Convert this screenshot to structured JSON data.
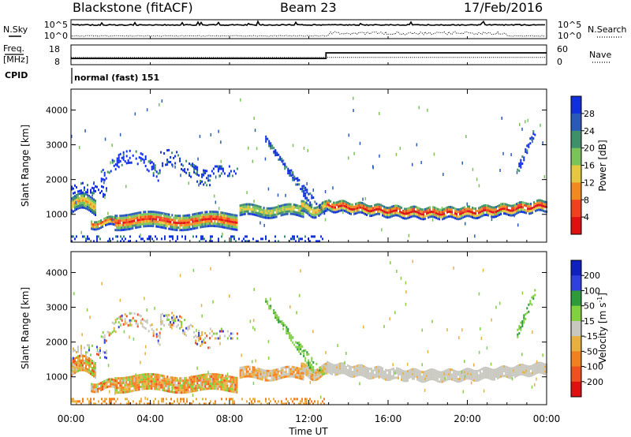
{
  "header": {
    "station": "Blackstone (fitACF)",
    "beam": "Beam 23",
    "date": "17/Feb/2016"
  },
  "chart_data": [
    {
      "type": "line",
      "panel": "noise",
      "left_label": "N.Sky",
      "right_label": "N.Search",
      "ticks": [
        "10^5",
        "10^0"
      ],
      "series": [
        {
          "name": "N.Sky",
          "style": "solid"
        },
        {
          "name": "N.Search",
          "style": "dotted"
        }
      ]
    },
    {
      "type": "line",
      "panel": "frequency",
      "left_label_1": "Freq.",
      "left_label_2": "[MHz]",
      "right_label": "Nave",
      "left_ticks": [
        "18",
        "8"
      ],
      "right_ticks": [
        "60",
        "0"
      ],
      "x": [
        "00:00",
        "12:52",
        "12:52",
        "24:00"
      ],
      "freq_mhz": [
        10.4,
        10.4,
        14.4,
        14.4
      ],
      "nave": [
        22,
        22,
        22,
        22
      ]
    },
    {
      "type": "table",
      "panel": "cpid",
      "label": "CPID",
      "value": "normal (fast) 151"
    },
    {
      "type": "heatmap",
      "panel": "power",
      "ylabel": "Slant Range [km]",
      "ylim": [
        200,
        4600
      ],
      "y_ticks": [
        "4000",
        "3000",
        "2000",
        "1000"
      ],
      "xlim_hours": [
        0,
        24
      ],
      "colorbar_label": "Power [dB]",
      "colorbar_ticks": [
        "28",
        "24",
        "20",
        "16",
        "12",
        "8",
        "4"
      ],
      "colors": [
        "#1030e0",
        "#2a5ab8",
        "#3f8f6a",
        "#7ac25a",
        "#e6c840",
        "#f08a20",
        "#f04020",
        "#e01010"
      ]
    },
    {
      "type": "heatmap",
      "panel": "velocity",
      "ylabel": "Slant Range [km]",
      "ylim": [
        200,
        4600
      ],
      "y_ticks": [
        "4000",
        "3000",
        "2000",
        "1000"
      ],
      "xlim_hours": [
        0,
        24
      ],
      "colorbar_label": "Velocity [m s",
      "colorbar_sup": "-1",
      "colorbar_label_end": "]",
      "colorbar_ticks": [
        "200",
        "100",
        "50",
        "15",
        "-15",
        "-50",
        "-100",
        "-200"
      ],
      "colors": [
        "#1020c0",
        "#3040e0",
        "#2e9a3a",
        "#80d040",
        "#c8c8c0",
        "#e8b040",
        "#f08020",
        "#f05020",
        "#e01010"
      ]
    }
  ],
  "x_axis": {
    "ticks": [
      "00:00",
      "04:00",
      "08:00",
      "12:00",
      "16:00",
      "20:00",
      "00:00"
    ],
    "xlabel": "Time UT"
  }
}
